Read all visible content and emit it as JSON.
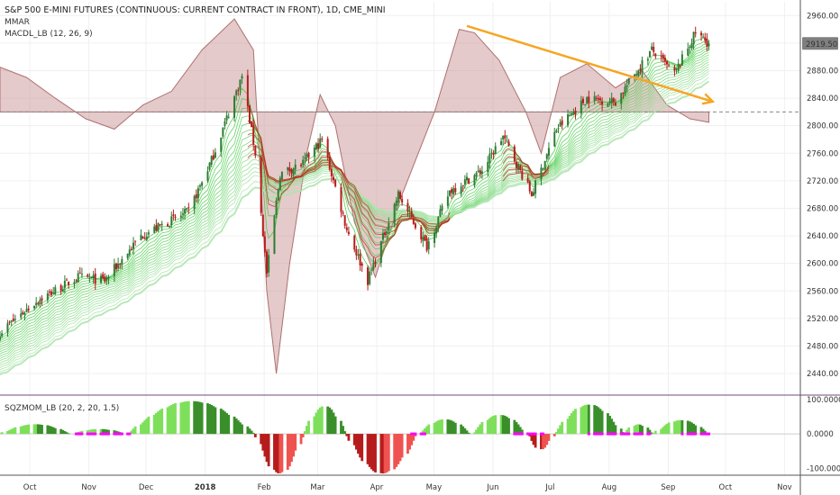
{
  "header": {
    "title": "S&P 500 E-MINI FUTURES (CONTINUOUS: CURRENT CONTRACT IN FRONT), 1D, CME_MINI",
    "indicator_1": "MMAR",
    "indicator_2": "MACDL_LB (12, 26, 9)"
  },
  "lower_pane": {
    "title": "SQZMOM_LB (20, 2, 20, 1.5)",
    "ticks": [
      "100.0000",
      "0.0000",
      "-100.0000"
    ]
  },
  "price_axis": {
    "ticks": [
      "2960.00",
      "2920.00",
      "2880.00",
      "2840.00",
      "2800.00",
      "2760.00",
      "2720.00",
      "2680.00",
      "2640.00",
      "2600.00",
      "2560.00",
      "2520.00",
      "2480.00",
      "2440.00"
    ],
    "last_price": "2919.50"
  },
  "time_axis": {
    "labels": [
      "Oct",
      "Nov",
      "Dec",
      "2018",
      "Feb",
      "Mar",
      "Apr",
      "May",
      "Jun",
      "Jul",
      "Aug",
      "Sep",
      "Oct",
      "Nov"
    ]
  },
  "colors": {
    "bull_candle": "#2e7d32",
    "bear_candle": "#b71c1c",
    "ribbon_green": "#33cc33",
    "ribbon_red": "#cc2222",
    "macd_fill": "#c48a8a",
    "trend_arrow": "#f5a623",
    "squeeze_on": "#ff00ff",
    "mom_pos": "#66cc33",
    "mom_neg": "#e53935",
    "last_price_bg": "#7f7f7f"
  },
  "chart_data": [
    {
      "type": "candlestick",
      "title": "S&P 500 E-MINI FUTURES (CONTINUOUS: CURRENT CONTRACT IN FRONT), 1D, CME_MINI",
      "x_range": [
        "2017-09-21",
        "2018-11-15"
      ],
      "ylim": [
        2410,
        2980
      ],
      "close_anchors": [
        [
          "2017-09-21",
          2500
        ],
        [
          "2017-10-10",
          2545
        ],
        [
          "2017-11-01",
          2580
        ],
        [
          "2017-11-15",
          2575
        ],
        [
          "2017-12-04",
          2640
        ],
        [
          "2017-12-29",
          2675
        ],
        [
          "2018-01-10",
          2750
        ],
        [
          "2018-01-26",
          2872
        ],
        [
          "2018-02-02",
          2760
        ],
        [
          "2018-02-08",
          2585
        ],
        [
          "2018-02-15",
          2730
        ],
        [
          "2018-02-27",
          2745
        ],
        [
          "2018-03-09",
          2780
        ],
        [
          "2018-03-22",
          2650
        ],
        [
          "2018-04-02",
          2575
        ],
        [
          "2018-04-18",
          2700
        ],
        [
          "2018-05-03",
          2625
        ],
        [
          "2018-05-15",
          2705
        ],
        [
          "2018-06-01",
          2735
        ],
        [
          "2018-06-12",
          2785
        ],
        [
          "2018-06-27",
          2700
        ],
        [
          "2018-07-10",
          2795
        ],
        [
          "2018-07-26",
          2840
        ],
        [
          "2018-08-10",
          2835
        ],
        [
          "2018-08-29",
          2910
        ],
        [
          "2018-09-10",
          2875
        ],
        [
          "2018-09-21",
          2935
        ],
        [
          "2018-09-28",
          2919.5
        ]
      ],
      "last_price": 2919.5,
      "trend_line": {
        "from": [
          "2018-05-24",
          2945
        ],
        "to": [
          "2018-09-30",
          2835
        ]
      },
      "reference_level": 2820
    },
    {
      "type": "bar",
      "title": "SQZMOM_LB (20, 2, 20, 1.5)",
      "ylim": [
        -120,
        110
      ],
      "ticks": [
        100,
        0,
        -100
      ],
      "segments": [
        {
          "from": "2017-09-21",
          "to": "2017-10-30",
          "peak": 28
        },
        {
          "from": "2017-10-30",
          "to": "2017-11-28",
          "peak": 14
        },
        {
          "from": "2017-11-28",
          "to": "2018-02-02",
          "peak": 95
        },
        {
          "from": "2018-02-02",
          "to": "2018-02-28",
          "peak": -115
        },
        {
          "from": "2018-02-28",
          "to": "2018-03-22",
          "peak": 80
        },
        {
          "from": "2018-03-22",
          "to": "2018-04-30",
          "peak": -115
        },
        {
          "from": "2018-04-30",
          "to": "2018-05-28",
          "peak": 42
        },
        {
          "from": "2018-05-28",
          "to": "2018-06-26",
          "peak": 55
        },
        {
          "from": "2018-06-26",
          "to": "2018-07-10",
          "peak": -45
        },
        {
          "from": "2018-07-10",
          "to": "2018-08-15",
          "peak": 85
        },
        {
          "from": "2018-08-15",
          "to": "2018-08-30",
          "peak": 28
        },
        {
          "from": "2018-08-30",
          "to": "2018-09-28",
          "peak": 40
        }
      ],
      "squeeze_on_ranges": [
        [
          "2017-10-31",
          "2017-11-28"
        ],
        [
          "2018-04-25",
          "2018-05-02"
        ],
        [
          "2018-06-18",
          "2018-07-03"
        ],
        [
          "2018-07-27",
          "2018-08-28"
        ],
        [
          "2018-09-14",
          "2018-09-28"
        ]
      ]
    }
  ]
}
